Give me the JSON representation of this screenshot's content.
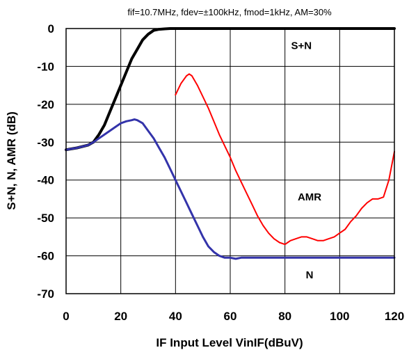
{
  "chart_data": {
    "type": "line",
    "title": "fif=10.7MHz, fdev=±100kHz, fmod=1kHz, AM=30%",
    "xlabel": "IF Input Level VinIF(dBuV)",
    "ylabel": "S+N, N, AMR (dB)",
    "xlim": [
      0,
      120
    ],
    "ylim": [
      -70,
      0
    ],
    "xticks": [
      0,
      20,
      40,
      60,
      80,
      100,
      120
    ],
    "yticks": [
      0,
      -10,
      -20,
      -30,
      -40,
      -50,
      -60,
      -70
    ],
    "grid": true,
    "legend": "none",
    "annotations": [
      {
        "text": "S+N",
        "x": 86,
        "y": -4.5
      },
      {
        "text": "AMR",
        "x": 89,
        "y": -44.5
      },
      {
        "text": "N",
        "x": 89,
        "y": -65
      }
    ],
    "series": [
      {
        "color": "#000000",
        "x": [
          0,
          4,
          8,
          10,
          12,
          14,
          16,
          18,
          20,
          22,
          24,
          26,
          28,
          30,
          32,
          34,
          36,
          38,
          40,
          45,
          50,
          60,
          80,
          100,
          120
        ],
        "y": [
          -32,
          -31.5,
          -30.8,
          -30,
          -28,
          -25.5,
          -22,
          -18.5,
          -15,
          -11.5,
          -8,
          -5.5,
          -3,
          -1.5,
          -0.5,
          -0.2,
          -0.1,
          0,
          0,
          0,
          0,
          0,
          0,
          0,
          0
        ]
      },
      {
        "color": "#ff0000",
        "x": [
          40,
          42,
          44,
          45,
          46,
          48,
          50,
          52,
          54,
          56,
          58,
          60,
          62,
          64,
          66,
          68,
          70,
          72,
          74,
          76,
          78,
          80,
          81,
          82,
          84,
          86,
          88,
          90,
          92,
          94,
          96,
          98,
          100,
          102,
          104,
          106,
          108,
          110,
          112,
          114,
          116,
          118,
          120
        ],
        "y": [
          -17.5,
          -14.5,
          -12.5,
          -12,
          -12.5,
          -15,
          -18,
          -21,
          -24.5,
          -28,
          -31,
          -34,
          -37.5,
          -40.5,
          -43.5,
          -46.5,
          -49.5,
          -52,
          -54,
          -55.5,
          -56.5,
          -57,
          -56.5,
          -56,
          -55.5,
          -55,
          -55,
          -55.5,
          -56,
          -56,
          -55.5,
          -55,
          -54,
          -53,
          -51,
          -49.5,
          -47.5,
          -46,
          -45,
          -45,
          -44.5,
          -40,
          -32.5
        ]
      },
      {
        "color": "#3333aa",
        "x": [
          0,
          4,
          8,
          10,
          12,
          14,
          16,
          18,
          20,
          22,
          24,
          25,
          26,
          28,
          30,
          32,
          34,
          36,
          38,
          40,
          42,
          44,
          46,
          48,
          50,
          52,
          54,
          56,
          58,
          60,
          62,
          64,
          70,
          80,
          90,
          100,
          110,
          120
        ],
        "y": [
          -32,
          -31.5,
          -30.8,
          -30,
          -29,
          -28,
          -27,
          -26,
          -25,
          -24.5,
          -24.2,
          -24,
          -24.2,
          -25,
          -27,
          -29,
          -31.5,
          -34,
          -37,
          -40,
          -43,
          -46,
          -49,
          -52,
          -55,
          -57.5,
          -59,
          -60,
          -60.5,
          -60.5,
          -60.8,
          -60.5,
          -60.5,
          -60.5,
          -60.5,
          -60.5,
          -60.5,
          -60.5
        ]
      }
    ]
  }
}
